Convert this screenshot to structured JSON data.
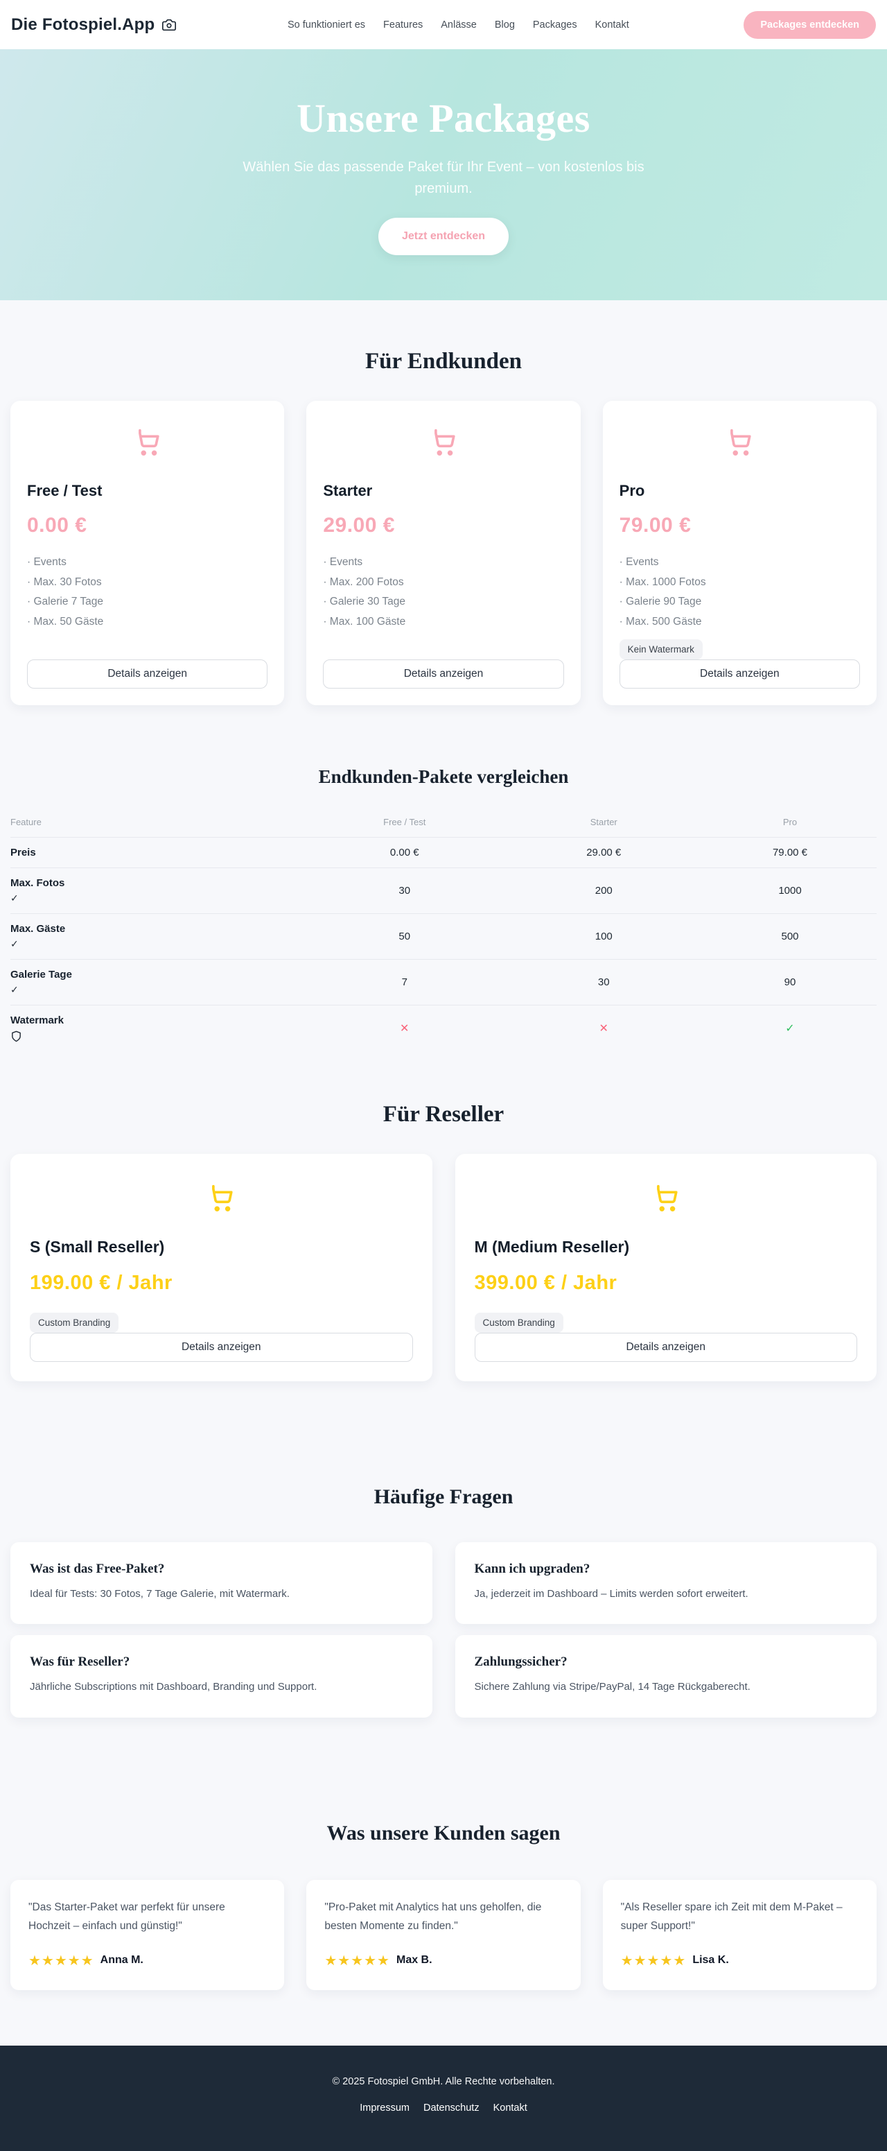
{
  "colors": {
    "accent_pink": "#f8a8b6",
    "accent_yellow": "#fdd017",
    "hero_teal": "#b7e6df",
    "footer_navy": "#1e2a38",
    "mark_red": "#f9647a",
    "mark_green": "#2fbe5f",
    "star_gold": "#f7c51e"
  },
  "header": {
    "logo": "Die Fotospiel.App",
    "nav": [
      "So funktioniert es",
      "Features",
      "Anlässe",
      "Blog",
      "Packages",
      "Kontakt"
    ],
    "cta": "Packages entdecken"
  },
  "hero": {
    "title": "Unsere Packages",
    "subtitle": "Wählen Sie das passende Paket für Ihr Event – von kostenlos bis premium.",
    "cta": "Jetzt entdecken"
  },
  "shared": {
    "details_label": "Details anzeigen",
    "bullet": "·"
  },
  "endkunden": {
    "heading": "Für Endkunden",
    "plans": [
      {
        "name": "Free / Test",
        "price": "0.00 €",
        "features": [
          "Events",
          "Max. 30 Fotos",
          "Galerie 7 Tage",
          "Max. 50 Gäste"
        ],
        "badge": ""
      },
      {
        "name": "Starter",
        "price": "29.00 €",
        "features": [
          "Events",
          "Max. 200 Fotos",
          "Galerie 30 Tage",
          "Max. 100 Gäste"
        ],
        "badge": ""
      },
      {
        "name": "Pro",
        "price": "79.00 €",
        "features": [
          "Events",
          "Max. 1000 Fotos",
          "Galerie 90 Tage",
          "Max. 500 Gäste"
        ],
        "badge": "Kein Watermark"
      }
    ]
  },
  "comparison": {
    "heading": "Endkunden-Pakete vergleichen",
    "columns": [
      "Feature",
      "Free / Test",
      "Starter",
      "Pro"
    ],
    "marks": {
      "x": "✕",
      "check": "✓"
    },
    "rows": [
      {
        "feature": "Preis",
        "icon": "",
        "type": "text",
        "values": [
          "0.00 €",
          "29.00 €",
          "79.00 €"
        ]
      },
      {
        "feature": "Max. Fotos",
        "icon": "check",
        "type": "text",
        "values": [
          "30",
          "200",
          "1000"
        ]
      },
      {
        "feature": "Max. Gäste",
        "icon": "check",
        "type": "text",
        "values": [
          "50",
          "100",
          "500"
        ]
      },
      {
        "feature": "Galerie Tage",
        "icon": "check",
        "type": "text",
        "values": [
          "7",
          "30",
          "90"
        ]
      },
      {
        "feature": "Watermark",
        "icon": "shield",
        "type": "mark",
        "values": [
          "x",
          "x",
          "check"
        ]
      }
    ]
  },
  "reseller": {
    "heading": "Für Reseller",
    "plans": [
      {
        "name": "S (Small Reseller)",
        "price": "199.00 € / Jahr",
        "features": [],
        "badge": "Custom Branding"
      },
      {
        "name": "M (Medium Reseller)",
        "price": "399.00 € / Jahr",
        "features": [],
        "badge": "Custom Branding"
      }
    ]
  },
  "faq": {
    "heading": "Häufige Fragen",
    "items": [
      {
        "q": "Was ist das Free-Paket?",
        "a": "Ideal für Tests: 30 Fotos, 7 Tage Galerie, mit Watermark."
      },
      {
        "q": "Kann ich upgraden?",
        "a": "Ja, jederzeit im Dashboard – Limits werden sofort erweitert."
      },
      {
        "q": "Was für Reseller?",
        "a": "Jährliche Subscriptions mit Dashboard, Branding und Support."
      },
      {
        "q": "Zahlungssicher?",
        "a": "Sichere Zahlung via Stripe/PayPal, 14 Tage Rückgaberecht."
      }
    ]
  },
  "testimonials": {
    "heading": "Was unsere Kunden sagen",
    "star": "★",
    "items": [
      {
        "quote": "\"Das Starter-Paket war perfekt für unsere Hochzeit – einfach und günstig!\"",
        "rating": 5,
        "name": "Anna M."
      },
      {
        "quote": "\"Pro-Paket mit Analytics hat uns geholfen, die besten Momente zu finden.\"",
        "rating": 5,
        "name": "Max B."
      },
      {
        "quote": "\"Als Reseller spare ich Zeit mit dem M-Paket – super Support!\"",
        "rating": 5,
        "name": "Lisa K."
      }
    ]
  },
  "footer": {
    "copyright": "© 2025 Fotospiel GmbH. Alle Rechte vorbehalten.",
    "links": [
      "Impressum",
      "Datenschutz",
      "Kontakt"
    ]
  }
}
